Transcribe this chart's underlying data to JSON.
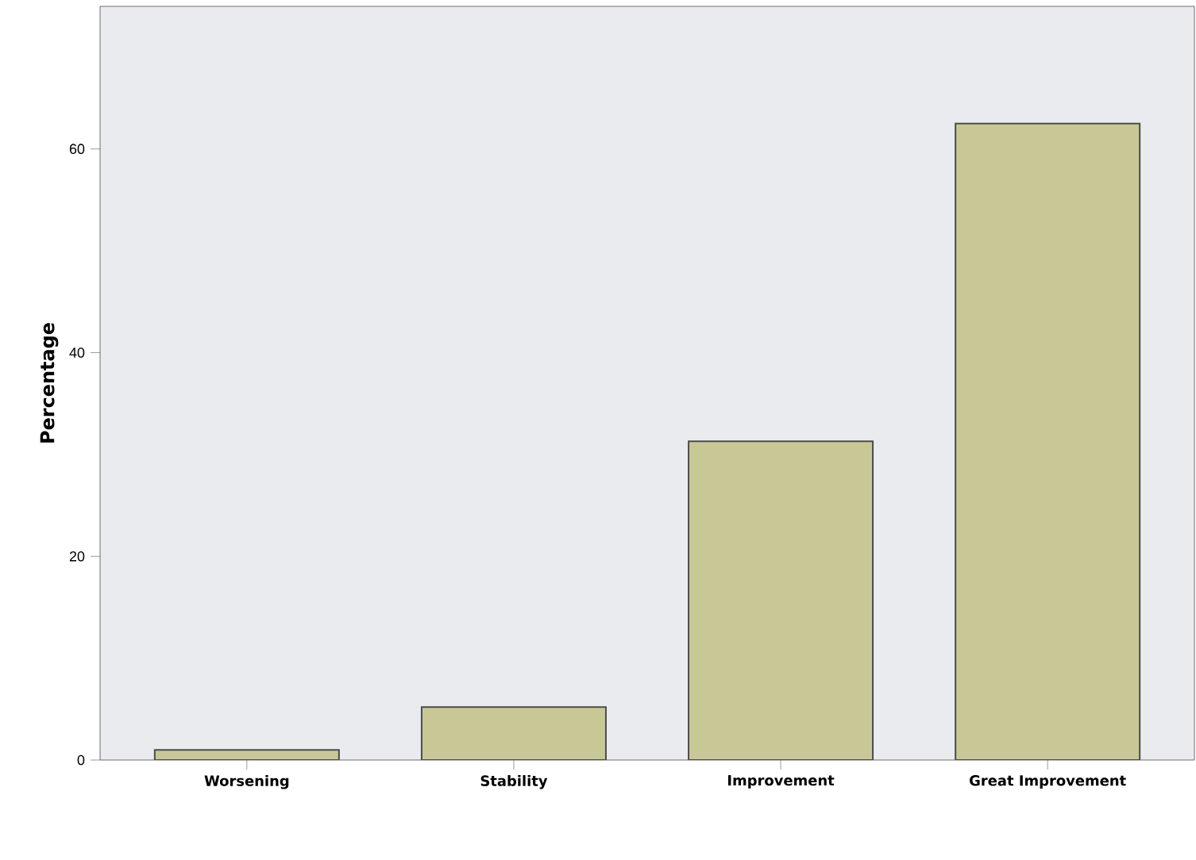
{
  "chart_data": {
    "type": "bar",
    "ylabel": "Percentage",
    "categories": [
      "Worsening",
      "Stability",
      "Improvement",
      "Great Improvement"
    ],
    "values": [
      1.0,
      5.2,
      31.3,
      62.5
    ],
    "color": "#c8c896",
    "ylim": [
      0,
      74
    ],
    "yticks": [
      0,
      20,
      40,
      60
    ],
    "grid": false
  }
}
